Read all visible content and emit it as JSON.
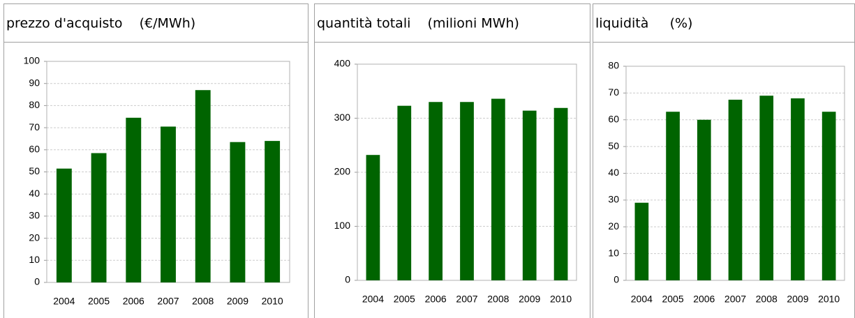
{
  "chart_data": [
    {
      "type": "bar",
      "title": "prezzo d'acquisto    (€/MWh)",
      "categories": [
        "2004",
        "2005",
        "2006",
        "2007",
        "2008",
        "2009",
        "2010"
      ],
      "values": [
        51.5,
        58.5,
        74.5,
        70.5,
        87,
        63.5,
        64
      ],
      "color": "#006400",
      "ylim": [
        0,
        100
      ],
      "yticks": [
        0,
        10,
        20,
        30,
        40,
        50,
        60,
        70,
        80,
        90,
        100
      ],
      "grid": true
    },
    {
      "type": "bar",
      "title": "quantità totali    (milioni MWh)",
      "categories": [
        "2004",
        "2005",
        "2006",
        "2007",
        "2008",
        "2009",
        "2010"
      ],
      "values": [
        232,
        323,
        330,
        330,
        336,
        314,
        319
      ],
      "color": "#006400",
      "ylim": [
        0,
        400
      ],
      "yticks": [
        0,
        100,
        200,
        300,
        400
      ],
      "grid": true
    },
    {
      "type": "bar",
      "title": "liquidità     (%)",
      "categories": [
        "2004",
        "2005",
        "2006",
        "2007",
        "2008",
        "2009",
        "2010"
      ],
      "values": [
        29,
        63,
        60,
        67.5,
        69,
        68,
        63
      ],
      "color": "#006400",
      "ylim": [
        0,
        80
      ],
      "yticks": [
        0,
        10,
        20,
        30,
        40,
        50,
        60,
        70,
        80
      ],
      "grid": true
    }
  ]
}
